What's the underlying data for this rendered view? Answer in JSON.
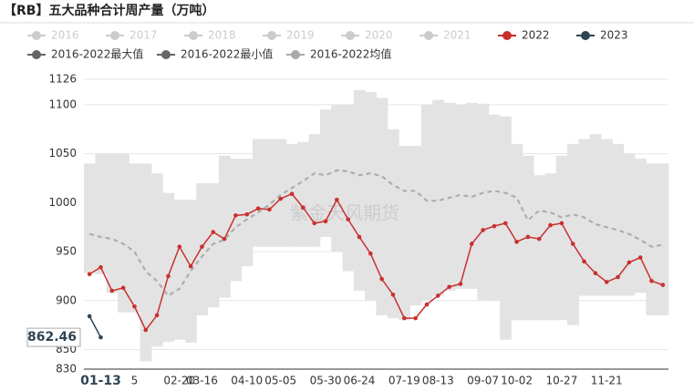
{
  "chart_data": {
    "type": "line",
    "title": "【RB】五大品种合计周产量（万吨）",
    "watermark": "紫金天风期货",
    "inactive_series": [
      "2016",
      "2017",
      "2018",
      "2019",
      "2020",
      "2021"
    ],
    "categories": [
      null,
      "01-13",
      null,
      null,
      "5",
      null,
      null,
      null,
      "02-20",
      null,
      "03-16",
      null,
      null,
      null,
      "04-10",
      null,
      null,
      "05-05",
      null,
      null,
      null,
      "05-30",
      null,
      null,
      "06-24",
      null,
      null,
      null,
      "07-19",
      null,
      null,
      "08-13",
      null,
      null,
      null,
      "09-07",
      null,
      null,
      "10-02",
      null,
      null,
      null,
      "10-27",
      null,
      null,
      null,
      "11-21",
      null,
      null,
      null,
      null,
      null
    ],
    "series": [
      {
        "name": "2022",
        "color": "#c8302e",
        "style": "line",
        "values": [
          927,
          934,
          910,
          913,
          894,
          870,
          885,
          925,
          955,
          935,
          955,
          970,
          963,
          987,
          988,
          994,
          993,
          1004,
          1009,
          995,
          979,
          981,
          1003,
          983,
          965,
          948,
          922,
          906,
          882,
          882,
          896,
          905,
          914,
          917,
          958,
          972,
          976,
          979,
          960,
          965,
          963,
          977,
          979,
          958,
          940,
          928,
          919,
          924,
          939,
          944,
          920,
          916
        ]
      },
      {
        "name": "2023",
        "color": "#2f4554",
        "style": "line",
        "values": [
          884,
          862.46,
          null,
          null,
          null,
          null,
          null,
          null,
          null,
          null,
          null,
          null,
          null,
          null,
          null,
          null,
          null,
          null,
          null,
          null,
          null,
          null,
          null,
          null,
          null,
          null,
          null,
          null,
          null,
          null,
          null,
          null,
          null,
          null,
          null,
          null,
          null,
          null,
          null,
          null,
          null,
          null,
          null,
          null,
          null,
          null,
          null,
          null,
          null,
          null,
          null,
          null
        ],
        "value_labels": [
          null,
          "862.46",
          null,
          null,
          null,
          null,
          null,
          null,
          null,
          null,
          null,
          null,
          null,
          null,
          null,
          null,
          null,
          null,
          null,
          null,
          null,
          null,
          null,
          null,
          null,
          null,
          null,
          null,
          null,
          null,
          null,
          null,
          null,
          null,
          null,
          null,
          null,
          null,
          null,
          null,
          null,
          null,
          null,
          null,
          null,
          null,
          null,
          null,
          null,
          null,
          null,
          null
        ]
      },
      {
        "name": "2016-2022最大值",
        "color": "#666666",
        "style": "band-top",
        "values": [
          1040,
          1050,
          1050,
          1050,
          1040,
          1040,
          1030,
          1010,
          1003,
          1003,
          1020,
          1020,
          1048,
          1045,
          1045,
          1065,
          1065,
          1065,
          1060,
          1062,
          1070,
          1095,
          1100,
          1100,
          1115,
          1113,
          1107,
          1075,
          1058,
          1058,
          1100,
          1105,
          1102,
          1100,
          1102,
          1101,
          1090,
          1088,
          1060,
          1048,
          1028,
          1030,
          1048,
          1060,
          1065,
          1070,
          1065,
          1060,
          1050,
          1045,
          1040,
          1040
        ]
      },
      {
        "name": "2016-2022最小值",
        "color": "#666666",
        "style": "band-bottom",
        "values": [
          928,
          927,
          908,
          888,
          888,
          838,
          853,
          858,
          860,
          857,
          885,
          893,
          903,
          920,
          935,
          955,
          955,
          955,
          955,
          955,
          955,
          965,
          950,
          930,
          910,
          900,
          885,
          882,
          880,
          895,
          900,
          905,
          910,
          912,
          912,
          900,
          900,
          860,
          880,
          880,
          880,
          880,
          880,
          875,
          905,
          905,
          905,
          905,
          905,
          908,
          885,
          885
        ]
      },
      {
        "name": "2016-2022均值",
        "color": "#aaaaaa",
        "style": "dashed",
        "values": [
          968,
          965,
          963,
          958,
          950,
          930,
          920,
          905,
          912,
          930,
          945,
          958,
          962,
          975,
          983,
          990,
          998,
          1008,
          1015,
          1022,
          1030,
          1028,
          1033,
          1032,
          1028,
          1030,
          1027,
          1018,
          1012,
          1012,
          1002,
          1002,
          1005,
          1008,
          1006,
          1010,
          1012,
          1010,
          1005,
          982,
          992,
          990,
          985,
          988,
          985,
          978,
          975,
          972,
          968,
          962,
          955,
          957
        ]
      }
    ],
    "ylim": [
      830,
      1126
    ],
    "yticks": [
      830,
      850,
      900,
      950,
      1000,
      1050,
      1100,
      1126
    ],
    "grid": true
  }
}
